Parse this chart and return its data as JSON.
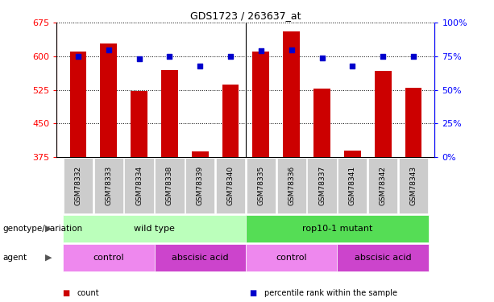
{
  "title": "GDS1723 / 263637_at",
  "samples": [
    "GSM78332",
    "GSM78333",
    "GSM78334",
    "GSM78338",
    "GSM78339",
    "GSM78340",
    "GSM78335",
    "GSM78336",
    "GSM78337",
    "GSM78341",
    "GSM78342",
    "GSM78343"
  ],
  "counts": [
    610,
    628,
    522,
    570,
    388,
    537,
    610,
    655,
    528,
    390,
    568,
    530
  ],
  "percentiles": [
    75,
    80,
    73,
    75,
    68,
    75,
    79,
    80,
    74,
    68,
    75,
    75
  ],
  "ylim_left": [
    375,
    675
  ],
  "ylim_right": [
    0,
    100
  ],
  "yticks_left": [
    375,
    450,
    525,
    600,
    675
  ],
  "yticks_right": [
    0,
    25,
    50,
    75,
    100
  ],
  "ytick_labels_right": [
    "0%",
    "25%",
    "50%",
    "75%",
    "100%"
  ],
  "bar_color": "#cc0000",
  "dot_color": "#0000cc",
  "background_color": "#ffffff",
  "genotype_row": {
    "groups": [
      {
        "label": "wild type",
        "start": 0,
        "end": 6,
        "color": "#bbffbb"
      },
      {
        "label": "rop10-1 mutant",
        "start": 6,
        "end": 12,
        "color": "#55dd55"
      }
    ]
  },
  "agent_row": {
    "groups": [
      {
        "label": "control",
        "start": 0,
        "end": 3,
        "color": "#ee88ee"
      },
      {
        "label": "abscisic acid",
        "start": 3,
        "end": 6,
        "color": "#cc44cc"
      },
      {
        "label": "control",
        "start": 6,
        "end": 9,
        "color": "#ee88ee"
      },
      {
        "label": "abscisic acid",
        "start": 9,
        "end": 12,
        "color": "#cc44cc"
      }
    ]
  },
  "legend": [
    {
      "label": "count",
      "color": "#cc0000"
    },
    {
      "label": "percentile rank within the sample",
      "color": "#0000cc"
    }
  ],
  "genotype_label": "genotype/variation",
  "agent_label": "agent",
  "tick_bg_color": "#cccccc"
}
